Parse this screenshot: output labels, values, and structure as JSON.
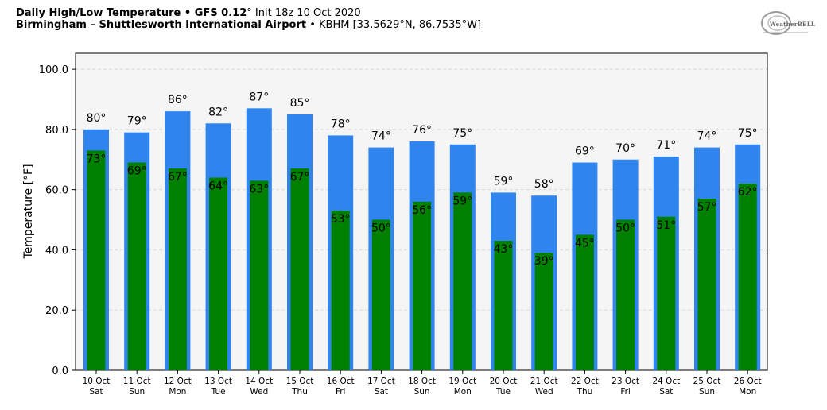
{
  "header": {
    "title_bold": "Daily High/Low Temperature • GFS 0.12",
    "title_deg": "°",
    "title_rest": " Init 18z 10 Oct 2020",
    "subtitle_bold": "Birmingham – Shuttlesworth International Airport",
    "subtitle_rest": " • KBHM [33.5629°N, 86.7535°W]"
  },
  "logo": {
    "text": "WeatherBELL",
    "icon": "weatherbell-logo-icon"
  },
  "colors": {
    "high": "#2f84ee",
    "low": "#008000",
    "plot_bg": "#f5f5f5",
    "grid": "#d8d8d8"
  },
  "chart_data": {
    "type": "bar",
    "ylabel": "Temperature [°F]",
    "ylim": [
      0,
      100
    ],
    "yticks": [
      "0.0",
      "20.0",
      "40.0",
      "60.0",
      "80.0",
      "100.0"
    ],
    "grid": true,
    "categories": [
      [
        "10 Oct",
        "Sat"
      ],
      [
        "11 Oct",
        "Sun"
      ],
      [
        "12 Oct",
        "Mon"
      ],
      [
        "13 Oct",
        "Tue"
      ],
      [
        "14 Oct",
        "Wed"
      ],
      [
        "15 Oct",
        "Thu"
      ],
      [
        "16 Oct",
        "Fri"
      ],
      [
        "17 Oct",
        "Sat"
      ],
      [
        "18 Oct",
        "Sun"
      ],
      [
        "19 Oct",
        "Mon"
      ],
      [
        "20 Oct",
        "Tue"
      ],
      [
        "21 Oct",
        "Wed"
      ],
      [
        "22 Oct",
        "Thu"
      ],
      [
        "23 Oct",
        "Fri"
      ],
      [
        "24 Oct",
        "Sat"
      ],
      [
        "25 Oct",
        "Sun"
      ],
      [
        "26 Oct",
        "Mon"
      ]
    ],
    "series": [
      {
        "values": [
          80,
          79,
          86,
          82,
          87,
          85,
          78,
          74,
          76,
          75,
          59,
          58,
          69,
          70,
          71,
          74,
          75
        ]
      },
      {
        "values": [
          73,
          69,
          67,
          64,
          63,
          67,
          53,
          50,
          56,
          59,
          43,
          39,
          45,
          50,
          51,
          57,
          62
        ]
      }
    ],
    "value_suffix": "°"
  }
}
